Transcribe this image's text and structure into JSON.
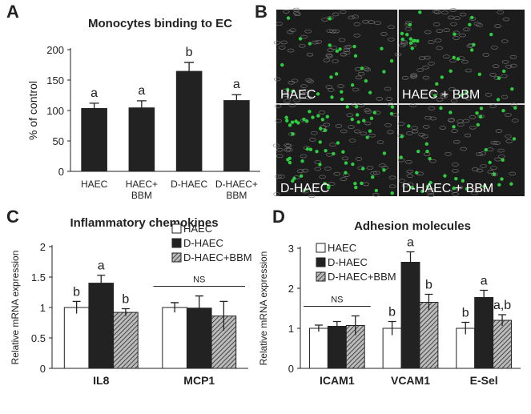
{
  "chart_data": [
    {
      "type": "bar",
      "panel": "A",
      "title": "Monocytes binding to EC",
      "y_label": "% of control",
      "categories": [
        "HAEC",
        "HAEC+ BBM",
        "D-HAEC",
        "D-HAEC+ BBM"
      ],
      "values": [
        104,
        105,
        165,
        117
      ],
      "errors": [
        8,
        11,
        14,
        9
      ],
      "annotations": [
        "a",
        "a",
        "b",
        "a"
      ],
      "color": "#222222",
      "ylim": [
        0,
        200
      ],
      "yticks": [
        0,
        50,
        100,
        150,
        200
      ]
    },
    {
      "type": "grouped-bar",
      "panel": "C",
      "title": "Inflammatory chemokines",
      "y_label": "Relative mRNA expression",
      "categories": [
        "IL8",
        "MCP1"
      ],
      "group_notes": [
        null,
        "NS"
      ],
      "legend": "upper right",
      "ylim": [
        0,
        2
      ],
      "yticks": [
        0,
        0.5,
        1,
        1.5,
        2
      ],
      "series": [
        {
          "name": "HAEC",
          "color": "#ffffff",
          "values": [
            1.0,
            1.0
          ],
          "errors": [
            0.1,
            0.08
          ],
          "annotations": [
            "b",
            null
          ]
        },
        {
          "name": "D-HAEC",
          "color": "#222222",
          "values": [
            1.4,
            0.99
          ],
          "errors": [
            0.13,
            0.2
          ],
          "annotations": [
            "a",
            null
          ]
        },
        {
          "name": "D-HAEC+BBM",
          "color": "#888888",
          "hatch": true,
          "values": [
            0.92,
            0.86
          ],
          "errors": [
            0.06,
            0.24
          ],
          "annotations": [
            "b",
            null
          ]
        }
      ]
    },
    {
      "type": "grouped-bar",
      "panel": "D",
      "title": "Adhesion molecules",
      "y_label": "Relative mRNA expression",
      "categories": [
        "ICAM1",
        "VCAM1",
        "E-Sel"
      ],
      "group_notes": [
        "NS",
        null,
        null
      ],
      "legend": "upper left",
      "ylim": [
        0,
        3
      ],
      "yticks": [
        0,
        1,
        2,
        3
      ],
      "series": [
        {
          "name": "HAEC",
          "color": "#ffffff",
          "values": [
            1.0,
            1.0,
            1.0
          ],
          "errors": [
            0.08,
            0.17,
            0.15
          ],
          "annotations": [
            null,
            "b",
            "b"
          ]
        },
        {
          "name": "D-HAEC",
          "color": "#222222",
          "values": [
            1.05,
            2.65,
            1.77
          ],
          "errors": [
            0.12,
            0.26,
            0.18
          ],
          "annotations": [
            null,
            "a",
            "a"
          ]
        },
        {
          "name": "D-HAEC+BBM",
          "color": "#888888",
          "hatch": true,
          "values": [
            1.07,
            1.65,
            1.2
          ],
          "errors": [
            0.24,
            0.2,
            0.14
          ],
          "annotations": [
            null,
            "b",
            "a,b"
          ]
        }
      ]
    }
  ],
  "micrograph": {
    "panel": "B",
    "labels": [
      "HAEC",
      "HAEC + BBM",
      "D-HAEC",
      "D-HAEC + BBM"
    ]
  }
}
